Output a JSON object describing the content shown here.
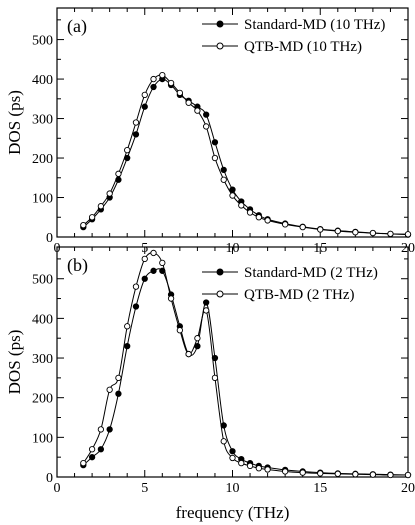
{
  "chart_data": [
    {
      "type": "line",
      "panel_label": "(a)",
      "xlim": [
        0,
        20
      ],
      "ylim": [
        0,
        580
      ],
      "x_ticks": [
        "0",
        "5",
        "10",
        "15",
        "20"
      ],
      "y_ticks": [
        "0",
        "100",
        "200",
        "300",
        "400",
        "500"
      ],
      "ylabel": "DOS (ps)",
      "xlabel": "",
      "legend": "top-right",
      "series": [
        {
          "name": "Standard-MD (10 THz)",
          "marker": "filled-circle",
          "x": [
            1.5,
            2.0,
            2.5,
            3.0,
            3.5,
            4.0,
            4.5,
            5.0,
            5.5,
            6.0,
            6.5,
            7.0,
            7.5,
            8.0,
            8.5,
            9.0,
            9.5,
            10.0,
            10.5,
            11.0,
            11.5,
            12.0,
            13.0,
            14.0,
            15.0,
            16.0,
            17.0,
            18.0,
            19.0,
            20.0
          ],
          "y": [
            25,
            45,
            70,
            100,
            145,
            200,
            260,
            330,
            380,
            400,
            385,
            360,
            345,
            330,
            310,
            240,
            170,
            120,
            90,
            70,
            55,
            45,
            34,
            26,
            20,
            16,
            13,
            10,
            8,
            6
          ]
        },
        {
          "name": "QTB-MD (10 THz)",
          "marker": "open-circle",
          "x": [
            1.5,
            2.0,
            2.5,
            3.0,
            3.5,
            4.0,
            4.5,
            5.0,
            5.5,
            6.0,
            6.5,
            7.0,
            7.5,
            8.0,
            8.5,
            9.0,
            9.5,
            10.0,
            10.5,
            11.0,
            11.5,
            12.0,
            13.0,
            14.0,
            15.0,
            16.0,
            17.0,
            18.0,
            19.0,
            20.0
          ],
          "y": [
            30,
            50,
            78,
            110,
            160,
            220,
            290,
            360,
            400,
            410,
            390,
            365,
            340,
            320,
            280,
            200,
            145,
            105,
            80,
            62,
            50,
            42,
            32,
            25,
            19,
            15,
            12,
            10,
            8,
            7
          ]
        }
      ]
    },
    {
      "type": "line",
      "panel_label": "(b)",
      "xlim": [
        0,
        20
      ],
      "ylim": [
        0,
        580
      ],
      "x_ticks": [
        "0",
        "5",
        "10",
        "15",
        "20"
      ],
      "y_ticks": [
        "0",
        "100",
        "200",
        "300",
        "400",
        "500"
      ],
      "ylabel": "DOS (ps)",
      "xlabel": "frequency (THz)",
      "legend": "top-right",
      "series": [
        {
          "name": "Standard-MD (2 THz)",
          "marker": "filled-circle",
          "x": [
            1.5,
            2.0,
            2.5,
            3.0,
            3.5,
            4.0,
            4.5,
            5.0,
            5.5,
            6.0,
            6.5,
            7.0,
            7.5,
            8.0,
            8.5,
            9.0,
            9.5,
            10.0,
            10.5,
            11.0,
            11.5,
            12.0,
            13.0,
            14.0,
            15.0,
            16.0,
            17.0,
            18.0,
            19.0,
            20.0
          ],
          "y": [
            30,
            50,
            70,
            120,
            210,
            330,
            430,
            500,
            520,
            520,
            460,
            380,
            310,
            330,
            440,
            300,
            130,
            65,
            45,
            35,
            28,
            24,
            18,
            14,
            11,
            9,
            8,
            7,
            6,
            5
          ]
        },
        {
          "name": "QTB-MD (2 THz)",
          "marker": "open-circle",
          "x": [
            1.5,
            2.0,
            2.5,
            3.0,
            3.5,
            4.0,
            4.5,
            5.0,
            5.5,
            6.0,
            6.5,
            7.0,
            7.5,
            8.0,
            8.5,
            9.0,
            9.5,
            10.0,
            10.5,
            11.0,
            11.5,
            12.0,
            13.0,
            14.0,
            15.0,
            16.0,
            17.0,
            18.0,
            19.0,
            20.0
          ],
          "y": [
            35,
            70,
            120,
            220,
            250,
            380,
            480,
            550,
            565,
            540,
            450,
            370,
            310,
            350,
            420,
            250,
            90,
            48,
            35,
            28,
            22,
            19,
            14,
            11,
            9,
            8,
            7,
            6,
            5,
            5
          ]
        }
      ]
    }
  ]
}
